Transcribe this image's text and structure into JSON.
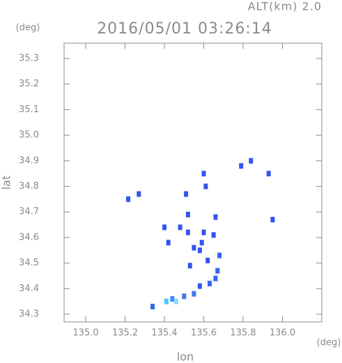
{
  "chart_data": {
    "type": "scatter",
    "title": "2016/05/01 03:26:14",
    "annotation": "ALT(km) 2.0",
    "y_unit": "(deg)",
    "x_unit": "(deg)",
    "x_label": "lon",
    "y_label": "lat",
    "xlim": [
      134.89,
      136.2
    ],
    "ylim": [
      34.27,
      35.36
    ],
    "xticks": [
      {
        "value": 135.0,
        "label": "135.0"
      },
      135.2,
      135.4,
      135.6,
      135.8,
      {
        "value": 136.0,
        "label": "136.0"
      }
    ],
    "yticks": [
      34.3,
      34.4,
      34.5,
      34.6,
      34.7,
      34.8,
      34.9,
      {
        "value": 35.0,
        "label": "35.0"
      },
      35.1,
      35.2,
      35.3
    ],
    "x": [
      135.216,
      135.27,
      135.51,
      135.6,
      135.61,
      135.79,
      135.84,
      135.93,
      135.95,
      135.52,
      135.66,
      135.4,
      135.48,
      135.52,
      135.6,
      135.65,
      135.59,
      135.55,
      135.58,
      135.53,
      135.42,
      135.62,
      135.68,
      135.67,
      135.66,
      135.63,
      135.58,
      135.55,
      135.5,
      135.44,
      135.41,
      135.34,
      135.46
    ],
    "values": [
      34.75,
      34.77,
      34.77,
      34.85,
      34.8,
      34.88,
      34.9,
      34.85,
      34.67,
      34.69,
      34.68,
      34.64,
      34.64,
      34.62,
      34.62,
      34.61,
      34.58,
      34.56,
      34.55,
      34.49,
      34.58,
      34.51,
      34.53,
      34.47,
      34.44,
      34.42,
      34.41,
      34.38,
      34.37,
      34.36,
      34.35,
      34.33,
      34.35
    ],
    "colors": [
      "#3355ee",
      "#3355ee",
      "#3355ee",
      "#3355ee",
      "#3355ee",
      "#3355ee",
      "#3355ee",
      "#3355ee",
      "#3355ee",
      "#3355ee",
      "#3355ee",
      "#3355ee",
      "#3355ee",
      "#3355ee",
      "#3355ee",
      "#3355ee",
      "#3355ee",
      "#3355ee",
      "#3355ee",
      "#3355ee",
      "#3355ee",
      "#3355ee",
      "#3366ee",
      "#3366ee",
      "#3366ee",
      "#3366ee",
      "#3355ee",
      "#4477ee",
      "#4477ee",
      "#4488ff",
      "#44ccff",
      "#3366ee",
      "#88ddff"
    ]
  }
}
